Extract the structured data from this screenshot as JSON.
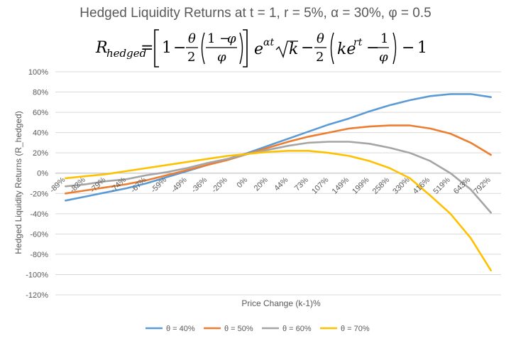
{
  "chart_data": {
    "type": "line",
    "title": "Hedged Liquidity Returns at t = 1, r = 5%, α = 30%, φ = 0.5",
    "subtitle": "R_hedged = [1 − θ/2((1 − φ)/φ)] e^{αt}√k − θ/2(ke^{rt} − 1/φ) − 1",
    "xlabel": "Price Change (k-1)%",
    "ylabel": "Hedged Liquidity Returns (R_hedged)",
    "x_tick_labels": [
      "-89%",
      "-82%",
      "-79%",
      "-74%",
      "-67%",
      "-59%",
      "-49%",
      "-36%",
      "-20%",
      "0%",
      "20%",
      "44%",
      "73%",
      "107%",
      "149%",
      "199%",
      "258%",
      "330%",
      "416%",
      "519%",
      "643%",
      "792%"
    ],
    "y_tick_labels": [
      "-120%",
      "-100%",
      "-80%",
      "-60%",
      "-40%",
      "-20%",
      "0%",
      "20%",
      "40%",
      "60%",
      "80%",
      "100%"
    ],
    "ylim": [
      -120,
      100
    ],
    "grid": true,
    "legend_position": "bottom",
    "series": [
      {
        "name": "θ = 40%",
        "color": "#5b9bd5",
        "values": [
          -27,
          -23,
          -19,
          -15,
          -10,
          -4,
          2,
          8,
          14,
          20,
          27,
          34,
          41,
          48,
          54,
          61,
          67,
          72,
          76,
          78,
          78,
          75
        ]
      },
      {
        "name": "θ = 50%",
        "color": "#ed7d31",
        "values": [
          -20,
          -17,
          -14,
          -11,
          -7,
          -2,
          3,
          8,
          13,
          19,
          25,
          31,
          36,
          40,
          44,
          46,
          47,
          47,
          44,
          39,
          30,
          18
        ]
      },
      {
        "name": "θ = 60%",
        "color": "#a5a5a5",
        "values": [
          -13,
          -11,
          -8,
          -6,
          -2,
          1,
          5,
          10,
          14,
          19,
          23,
          27,
          30,
          31,
          31,
          29,
          25,
          20,
          12,
          0,
          -16,
          -39
        ]
      },
      {
        "name": "θ = 70%",
        "color": "#ffc000",
        "values": [
          -5,
          -3,
          -1,
          2,
          5,
          8,
          11,
          14,
          17,
          19,
          21,
          22,
          22,
          20,
          17,
          12,
          5,
          -5,
          -22,
          -40,
          -64,
          -96
        ]
      }
    ]
  }
}
